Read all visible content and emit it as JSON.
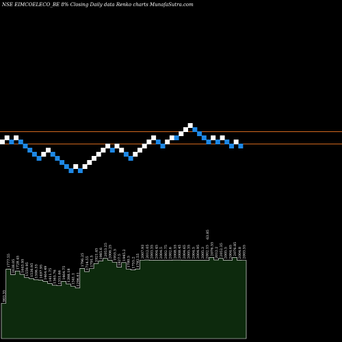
{
  "chart_data": {
    "type": "renko",
    "title": "NSE EIMCOELECO_BE 8% Closing Daily data Renko charts MunafaSutra.com",
    "colors": {
      "background": "#000000",
      "up_brick": "#ffffff",
      "down_brick": "#1e88e5",
      "reference_line": "#d2691e",
      "volume_fill": "#0d2a0d",
      "volume_edge": "#ffffff"
    },
    "bricks": [
      {
        "dir": "up",
        "level": 2
      },
      {
        "dir": "up",
        "level": 3
      },
      {
        "dir": "down",
        "level": 2
      },
      {
        "dir": "up",
        "level": 3
      },
      {
        "dir": "down",
        "level": 2
      },
      {
        "dir": "down",
        "level": 1
      },
      {
        "dir": "down",
        "level": 0
      },
      {
        "dir": "down",
        "level": -1
      },
      {
        "dir": "down",
        "level": -2
      },
      {
        "dir": "up",
        "level": -1
      },
      {
        "dir": "up",
        "level": 0
      },
      {
        "dir": "down",
        "level": -1
      },
      {
        "dir": "down",
        "level": -2
      },
      {
        "dir": "down",
        "level": -3
      },
      {
        "dir": "down",
        "level": -4
      },
      {
        "dir": "down",
        "level": -5
      },
      {
        "dir": "up",
        "level": -4
      },
      {
        "dir": "down",
        "level": -5
      },
      {
        "dir": "up",
        "level": -4
      },
      {
        "dir": "up",
        "level": -3
      },
      {
        "dir": "up",
        "level": -2
      },
      {
        "dir": "up",
        "level": -1
      },
      {
        "dir": "up",
        "level": 0
      },
      {
        "dir": "up",
        "level": 1
      },
      {
        "dir": "down",
        "level": 0
      },
      {
        "dir": "up",
        "level": 1
      },
      {
        "dir": "up",
        "level": 0
      },
      {
        "dir": "down",
        "level": -1
      },
      {
        "dir": "down",
        "level": -2
      },
      {
        "dir": "up",
        "level": -1
      },
      {
        "dir": "up",
        "level": 0
      },
      {
        "dir": "up",
        "level": 1
      },
      {
        "dir": "up",
        "level": 2
      },
      {
        "dir": "up",
        "level": 3
      },
      {
        "dir": "down",
        "level": 2
      },
      {
        "dir": "down",
        "level": 1
      },
      {
        "dir": "up",
        "level": 2
      },
      {
        "dir": "up",
        "level": 3
      },
      {
        "dir": "down",
        "level": 3
      },
      {
        "dir": "up",
        "level": 4
      },
      {
        "dir": "up",
        "level": 5
      },
      {
        "dir": "up",
        "level": 6
      },
      {
        "dir": "down",
        "level": 5
      },
      {
        "dir": "down",
        "level": 4
      },
      {
        "dir": "down",
        "level": 3
      },
      {
        "dir": "down",
        "level": 2
      },
      {
        "dir": "up",
        "level": 3
      },
      {
        "dir": "down",
        "level": 2
      },
      {
        "dir": "up",
        "level": 3
      },
      {
        "dir": "down",
        "level": 2
      },
      {
        "dir": "down",
        "level": 1
      },
      {
        "dir": "up",
        "level": 2
      },
      {
        "dir": "down",
        "level": 1
      }
    ],
    "reference_levels": [
      4.5,
      1.5
    ],
    "volume_values": [
      903.35,
      1777.55,
      1638.05,
      1728.45,
      1643.95,
      1559.95,
      1536.95,
      1506.55,
      1497.95,
      1464.49,
      1411.75,
      1365.76,
      1351.66,
      1464.75,
      1398.18,
      1341.1,
      1296.61,
      1796.25,
      1714.55,
      1791.5,
      1921.45,
      1985.6,
      2053.25,
      2006.25,
      1955.5,
      1827.5,
      1945.2,
      1780.5,
      1755.2,
      1782.55,
      2007.93,
      2012.05,
      2003.35,
      2004.45,
      2004.5,
      2002.75,
      2002.6,
      2008.55,
      2008.45,
      2004.65,
      2005.35,
      2004.5,
      2004.95,
      2005.3,
      2002.15,
      2076.55,
      2012.2,
      2052.35,
      2005.5,
      2004.65,
      2076.85,
      2004.8,
      2003.55
    ],
    "volume_labels": [
      "903.35",
      "1777.55",
      "1638.05",
      "1728.45",
      "1643.95",
      "1559.95",
      "1536.95",
      "1506.55",
      "1497.95",
      "1464.49",
      "1411.75",
      "1365.76",
      "1351.66",
      "1464.75",
      "1398.18",
      "1341.1",
      "1296.61",
      "1796.25",
      "1714.55",
      "1791.5",
      "1921.45",
      "1985.6",
      "2053.25",
      "2006.25",
      "1955.5",
      "1827.5",
      "1945.2",
      "1780.5",
      "1755.2",
      "1782.55",
      "2007.93",
      "2012.05",
      "2003.35",
      "2004.45",
      "2004.5",
      "2002.75",
      "2002.6",
      "2008.55",
      "2008.45",
      "2004.65",
      "2005.35",
      "2004.5",
      "2004.95",
      "2005.3",
      "2002.15",
      "2076.55",
      "2012.2",
      "2052.35",
      "2005.5",
      "2004.65",
      "2076.85",
      "2004.8",
      "2003.55"
    ],
    "extra_labels": [
      "63.85"
    ],
    "xlabel": "",
    "ylabel": "",
    "grid": false
  }
}
